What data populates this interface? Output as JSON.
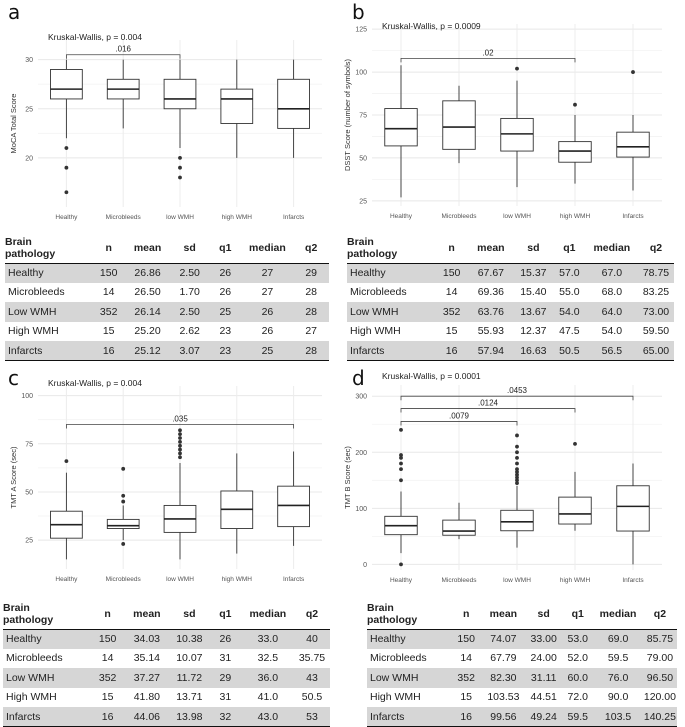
{
  "table_headers": [
    "Brain pathology",
    "n",
    "mean",
    "sd",
    "q1",
    "median",
    "q2"
  ],
  "chart_data": [
    {
      "type": "box",
      "panel_label": "a",
      "title": "Kruskal-Wallis, p = 0.004",
      "ylabel": "MoCA Total Score",
      "xlabel": "",
      "ylim": [
        15,
        32
      ],
      "yticks": [
        20,
        25,
        30
      ],
      "grid": true,
      "categories": [
        "Healthy",
        "Microbleeds",
        "low WMH",
        "high WMH",
        "Infarcts"
      ],
      "boxes": [
        {
          "q1": 26,
          "median": 27,
          "q3": 29,
          "whisker_low": 22,
          "whisker_high": 30,
          "outliers": [
            21,
            19,
            16.5
          ]
        },
        {
          "q1": 26,
          "median": 27,
          "q3": 28,
          "whisker_low": 23,
          "whisker_high": 30,
          "outliers": []
        },
        {
          "q1": 25,
          "median": 26,
          "q3": 28,
          "whisker_low": 21,
          "whisker_high": 30,
          "outliers": [
            20,
            19,
            18
          ]
        },
        {
          "q1": 23.5,
          "median": 26,
          "q3": 27,
          "whisker_low": 20,
          "whisker_high": 30,
          "outliers": []
        },
        {
          "q1": 23,
          "median": 25,
          "q3": 28,
          "whisker_low": 20,
          "whisker_high": 30,
          "outliers": []
        }
      ],
      "brackets": [
        {
          "from": 0,
          "to": 2,
          "y": 30.5,
          "label": ".016"
        }
      ],
      "table": [
        [
          "Healthy",
          "150",
          "26.86",
          "2.50",
          "26",
          "27",
          "29"
        ],
        [
          "Microbleeds",
          "14",
          "26.50",
          "1.70",
          "26",
          "27",
          "28"
        ],
        [
          "Low WMH",
          "352",
          "26.14",
          "2.50",
          "25",
          "26",
          "28"
        ],
        [
          "High WMH",
          "15",
          "25.20",
          "2.62",
          "23",
          "26",
          "27"
        ],
        [
          "Infarcts",
          "16",
          "25.12",
          "3.07",
          "23",
          "25",
          "28"
        ]
      ]
    },
    {
      "type": "box",
      "panel_label": "b",
      "title": "Kruskal-Wallis, p = 0.0009",
      "ylabel": "DSST Score (number of symbols)",
      "xlabel": "",
      "ylim": [
        22,
        128
      ],
      "yticks": [
        25,
        50,
        75,
        100,
        125
      ],
      "grid": true,
      "categories": [
        "Healthy",
        "Microbleeds",
        "low WMH",
        "high WMH",
        "Infarcts"
      ],
      "boxes": [
        {
          "q1": 57,
          "median": 67,
          "q3": 78.75,
          "whisker_low": 27,
          "whisker_high": 104,
          "outliers": []
        },
        {
          "q1": 55,
          "median": 68,
          "q3": 83.25,
          "whisker_low": 47,
          "whisker_high": 92,
          "outliers": []
        },
        {
          "q1": 54,
          "median": 64,
          "q3": 73,
          "whisker_low": 33,
          "whisker_high": 95,
          "outliers": [
            102
          ]
        },
        {
          "q1": 47.5,
          "median": 54,
          "q3": 59.5,
          "whisker_low": 35,
          "whisker_high": 75,
          "outliers": [
            81
          ]
        },
        {
          "q1": 50.5,
          "median": 56.5,
          "q3": 65,
          "whisker_low": 31,
          "whisker_high": 75,
          "outliers": [
            100
          ]
        }
      ],
      "brackets": [
        {
          "from": 0,
          "to": 3,
          "y": 108,
          "label": ".02"
        }
      ],
      "table": [
        [
          "Healthy",
          "150",
          "67.67",
          "15.37",
          "57.0",
          "67.0",
          "78.75"
        ],
        [
          "Microbleeds",
          "14",
          "69.36",
          "15.40",
          "55.0",
          "68.0",
          "83.25"
        ],
        [
          "Low WMH",
          "352",
          "63.76",
          "13.67",
          "54.0",
          "64.0",
          "73.00"
        ],
        [
          "High WMH",
          "15",
          "55.93",
          "12.37",
          "47.5",
          "54.0",
          "59.50"
        ],
        [
          "Infarcts",
          "16",
          "57.94",
          "16.63",
          "50.5",
          "56.5",
          "65.00"
        ]
      ]
    },
    {
      "type": "box",
      "panel_label": "c",
      "title": "Kruskal-Wallis, p = 0.004",
      "ylabel": "TMT A Score (sec)",
      "xlabel": "",
      "ylim": [
        10,
        105
      ],
      "yticks": [
        25,
        50,
        75,
        100
      ],
      "grid": true,
      "categories": [
        "Healthy",
        "Microbleeds",
        "low WMH",
        "high WMH",
        "Infarcts"
      ],
      "boxes": [
        {
          "q1": 26,
          "median": 33,
          "q3": 40,
          "whisker_low": 15,
          "whisker_high": 60,
          "outliers": [
            66
          ]
        },
        {
          "q1": 31,
          "median": 32.5,
          "q3": 35.75,
          "whisker_low": 25,
          "whisker_high": 43,
          "outliers": [
            48,
            45,
            62,
            23
          ]
        },
        {
          "q1": 29,
          "median": 36,
          "q3": 43,
          "whisker_low": 15,
          "whisker_high": 65,
          "outliers": [
            68,
            70,
            72,
            74,
            76,
            78,
            80,
            82
          ]
        },
        {
          "q1": 31,
          "median": 41,
          "q3": 50.5,
          "whisker_low": 18,
          "whisker_high": 70,
          "outliers": []
        },
        {
          "q1": 32,
          "median": 43,
          "q3": 53,
          "whisker_low": 22,
          "whisker_high": 71,
          "outliers": []
        }
      ],
      "brackets": [
        {
          "from": 0,
          "to": 4,
          "y": 85,
          "label": ".035"
        }
      ],
      "table": [
        [
          "Healthy",
          "150",
          "34.03",
          "10.38",
          "26",
          "33.0",
          "40"
        ],
        [
          "Microbleeds",
          "14",
          "35.14",
          "10.07",
          "31",
          "32.5",
          "35.75"
        ],
        [
          "Low WMH",
          "352",
          "37.27",
          "11.72",
          "29",
          "36.0",
          "43"
        ],
        [
          "High WMH",
          "15",
          "41.80",
          "13.71",
          "31",
          "41.0",
          "50.5"
        ],
        [
          "Infarcts",
          "16",
          "44.06",
          "13.98",
          "32",
          "43.0",
          "53"
        ]
      ]
    },
    {
      "type": "box",
      "panel_label": "d",
      "title": "Kruskal-Wallis, p = 0.0001",
      "ylabel": "TMT B Score (sec)",
      "xlabel": "",
      "ylim": [
        -10,
        320
      ],
      "yticks": [
        0,
        100,
        200,
        300
      ],
      "grid": true,
      "categories": [
        "Healthy",
        "Microbleeds",
        "low WMH",
        "high WMH",
        "Infarcts"
      ],
      "boxes": [
        {
          "q1": 53,
          "median": 69,
          "q3": 85.75,
          "whisker_low": 20,
          "whisker_high": 130,
          "outliers": [
            150,
            170,
            180,
            190,
            195,
            240,
            0
          ]
        },
        {
          "q1": 52,
          "median": 59.5,
          "q3": 79,
          "whisker_low": 45,
          "whisker_high": 110,
          "outliers": []
        },
        {
          "q1": 60,
          "median": 76,
          "q3": 96.5,
          "whisker_low": 30,
          "whisker_high": 140,
          "outliers": [
            145,
            150,
            155,
            160,
            165,
            170,
            180,
            190,
            200,
            210,
            230
          ]
        },
        {
          "q1": 72,
          "median": 90,
          "q3": 120,
          "whisker_low": 60,
          "whisker_high": 165,
          "outliers": [
            215
          ]
        },
        {
          "q1": 59.5,
          "median": 103.5,
          "q3": 140.25,
          "whisker_low": 0,
          "whisker_high": 180,
          "outliers": []
        }
      ],
      "brackets": [
        {
          "from": 0,
          "to": 4,
          "y": 300,
          "label": ".0453"
        },
        {
          "from": 0,
          "to": 3,
          "y": 278,
          "label": ".0124"
        },
        {
          "from": 0,
          "to": 2,
          "y": 255,
          "label": ".0079"
        }
      ],
      "table": [
        [
          "Healthy",
          "150",
          "74.07",
          "33.00",
          "53.0",
          "69.0",
          "85.75"
        ],
        [
          "Microbleeds",
          "14",
          "67.79",
          "24.00",
          "52.0",
          "59.5",
          "79.00"
        ],
        [
          "Low WMH",
          "352",
          "82.30",
          "31.11",
          "60.0",
          "76.0",
          "96.50"
        ],
        [
          "High WMH",
          "15",
          "103.53",
          "44.51",
          "72.0",
          "90.0",
          "120.00"
        ],
        [
          "Infarcts",
          "16",
          "99.56",
          "49.24",
          "59.5",
          "103.5",
          "140.25"
        ]
      ]
    }
  ]
}
